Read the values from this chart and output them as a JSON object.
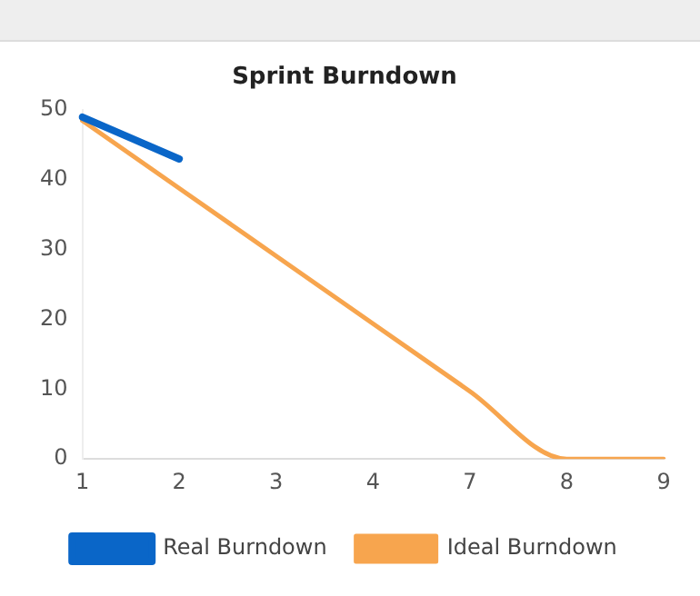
{
  "chart_data": {
    "type": "line",
    "title": "Sprint Burndown",
    "categories": [
      "1",
      "2",
      "3",
      "4",
      "7",
      "8",
      "9"
    ],
    "series": [
      {
        "name": "Real Burndown",
        "color": "#0a66c8",
        "values": [
          49,
          43,
          null,
          null,
          null,
          null,
          null
        ]
      },
      {
        "name": "Ideal Burndown",
        "color": "#f7a54e",
        "values": [
          48.5,
          38.8,
          29.1,
          19.4,
          9.7,
          0,
          0
        ]
      }
    ],
    "ylim": [
      0,
      50
    ],
    "yticks": [
      0,
      10,
      20,
      30,
      40,
      50
    ],
    "grid": false,
    "legend": "bottom",
    "marker": "none",
    "line_style": "solid"
  }
}
